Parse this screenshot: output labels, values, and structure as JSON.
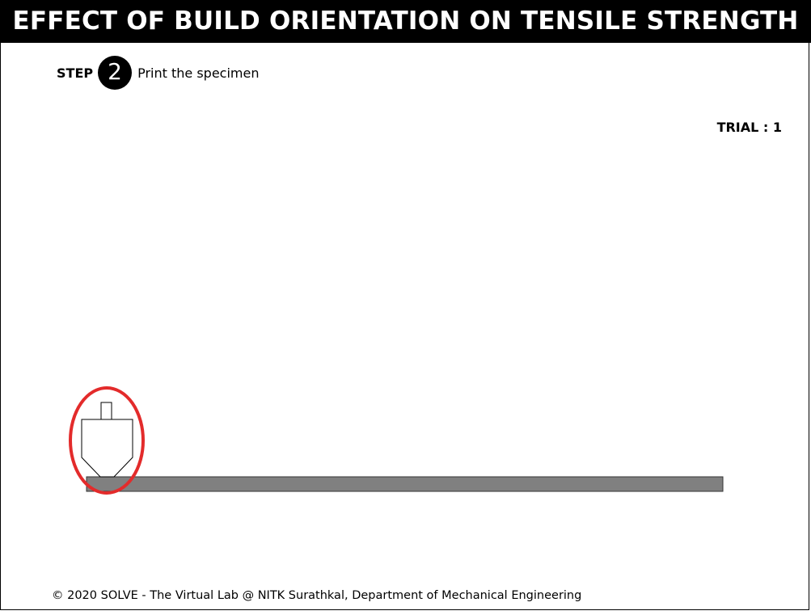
{
  "header": {
    "title": "EFFECT OF BUILD ORIENTATION ON TENSILE STRENGTH"
  },
  "step": {
    "label": "STEP",
    "number": "2",
    "instruction": "Print the specimen"
  },
  "trial": {
    "text": "TRIAL : 1"
  },
  "colors": {
    "bed": "#808080",
    "highlight": "#e32b2b",
    "title_bg": "#000000"
  },
  "footer": {
    "text": "© 2020 SOLVE - The Virtual Lab @ NITK Surathkal, Department of Mechanical Engineering"
  }
}
